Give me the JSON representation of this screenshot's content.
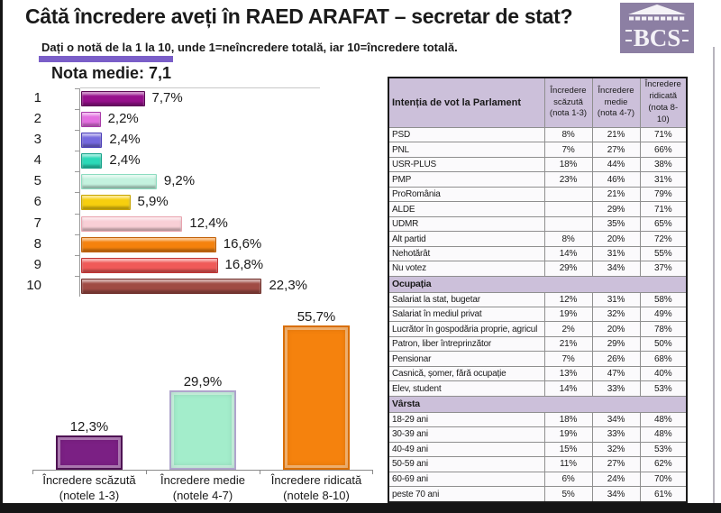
{
  "page": {
    "title": "Câtă încredere aveți în RAED ARAFAT – secretar de stat?",
    "subtitle": "Dați o notă de la 1 la 10, unde 1=neîncredere totală, iar 10=încredere totală.",
    "average_label": "Nota medie: 7,1",
    "logo_text": "BCS",
    "accent_color": "#7a5ec8",
    "logo_bg_color": "#8c7fa3"
  },
  "chart_data": [
    {
      "type": "bar",
      "orientation": "horizontal",
      "categories": [
        "1",
        "2",
        "3",
        "4",
        "5",
        "6",
        "7",
        "8",
        "9",
        "10"
      ],
      "values": [
        7.7,
        2.2,
        2.4,
        2.4,
        9.2,
        5.9,
        12.4,
        16.6,
        16.8,
        22.3
      ],
      "value_labels": [
        "7,7%",
        "2,2%",
        "2,4%",
        "2,4%",
        "9,2%",
        "5,9%",
        "12,4%",
        "16,6%",
        "16,8%",
        "22,3%"
      ],
      "bar_colors": [
        "#97108c",
        "#e46fe0",
        "#7569de",
        "#2bd9b8",
        "#c4f2df",
        "#f7cf0e",
        "#f8cfd6",
        "#f5820d",
        "#f05a58",
        "#a04b44"
      ],
      "bar_borders": [
        "#5c0a55",
        "#a93ba9",
        "#4a3db8",
        "#15a289",
        "#8cdcc0",
        "#c7a400",
        "#e9a3ae",
        "#c26007",
        "#c23434",
        "#6e2f2a"
      ],
      "xlim": [
        0,
        25
      ],
      "grid": false,
      "legend": "none"
    },
    {
      "type": "bar",
      "orientation": "vertical",
      "categories": [
        "Încredere scăzută",
        "Încredere medie",
        "Încredere ridicată"
      ],
      "category_notes": [
        "(notele 1-3)",
        "(notele 4-7)",
        "(notele 8-10)"
      ],
      "values": [
        12.3,
        29.9,
        55.7
      ],
      "value_labels": [
        "12,3%",
        "29,9%",
        "55,7%"
      ],
      "bar_colors": [
        "#7b2084",
        "#a3edcb",
        "#f5820d"
      ],
      "bar_borders": [
        "#4e1253",
        "#afa5cc",
        "#d96e05"
      ],
      "ylim": [
        0,
        60
      ],
      "grid": false,
      "legend": "none"
    }
  ],
  "table": {
    "header_label": "Intenția de vot la Parlament",
    "col_headers": [
      "Încredere\nscăzută\n(nota 1-3)",
      "Încredere\nmedie\n(nota 4-7)",
      "Încredere\nridicată\n(nota 8-10)"
    ],
    "groups": [
      {
        "section": "",
        "rows": [
          [
            "PSD",
            "8%",
            "21%",
            "71%"
          ],
          [
            "PNL",
            "7%",
            "27%",
            "66%"
          ],
          [
            "USR-PLUS",
            "18%",
            "44%",
            "38%"
          ],
          [
            "PMP",
            "23%",
            "46%",
            "31%"
          ],
          [
            "ProRomânia",
            "",
            "21%",
            "79%"
          ],
          [
            "ALDE",
            "",
            "29%",
            "71%"
          ],
          [
            "UDMR",
            "",
            "35%",
            "65%"
          ],
          [
            "Alt partid",
            "8%",
            "20%",
            "72%"
          ],
          [
            "Nehotărât",
            "14%",
            "31%",
            "55%"
          ],
          [
            "Nu votez",
            "29%",
            "34%",
            "37%"
          ]
        ]
      },
      {
        "section": "Ocupația",
        "rows": [
          [
            "Salariat la stat, bugetar",
            "12%",
            "31%",
            "58%"
          ],
          [
            "Salariat în mediul privat",
            "19%",
            "32%",
            "49%"
          ],
          [
            "Lucrător în gospodăria proprie, agricul",
            "2%",
            "20%",
            "78%"
          ],
          [
            "Patron, liber întreprinzător",
            "21%",
            "29%",
            "50%"
          ],
          [
            "Pensionar",
            "7%",
            "26%",
            "68%"
          ],
          [
            "Casnică, șomer, fără ocupație",
            "13%",
            "47%",
            "40%"
          ],
          [
            "Elev, student",
            "14%",
            "33%",
            "53%"
          ]
        ]
      },
      {
        "section": "Vârsta",
        "rows": [
          [
            "18-29 ani",
            "18%",
            "34%",
            "48%"
          ],
          [
            "30-39 ani",
            "19%",
            "33%",
            "48%"
          ],
          [
            "40-49 ani",
            "15%",
            "32%",
            "53%"
          ],
          [
            "50-59 ani",
            "11%",
            "27%",
            "62%"
          ],
          [
            "60-69 ani",
            "6%",
            "24%",
            "70%"
          ],
          [
            "peste 70 ani",
            "5%",
            "34%",
            "61%"
          ]
        ]
      }
    ]
  }
}
